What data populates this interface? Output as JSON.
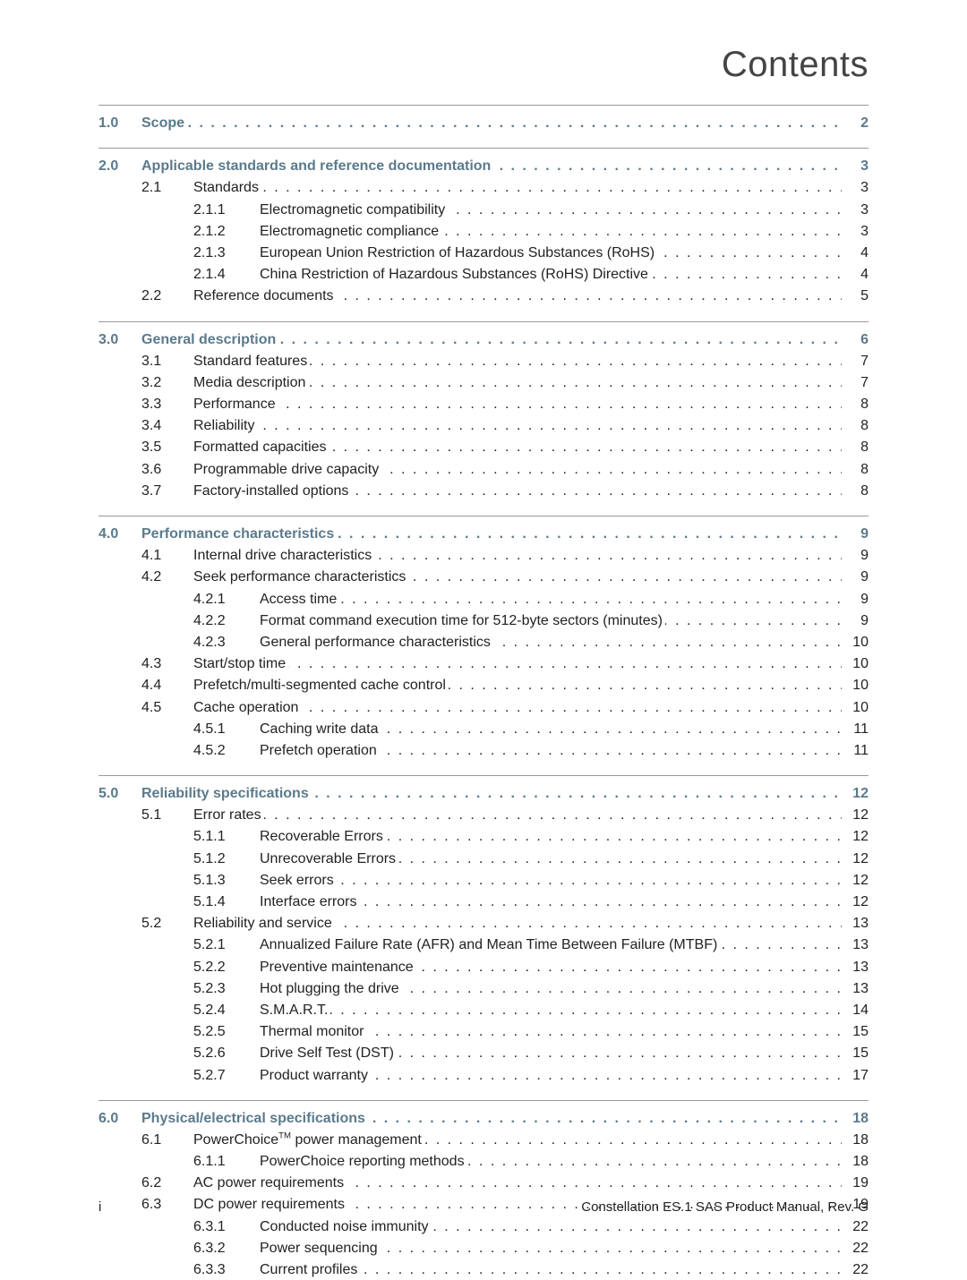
{
  "title": "Contents",
  "footer": {
    "left": "i",
    "right": "Constellation ES.1 SAS Product Manual, Rev. G"
  },
  "sections": [
    {
      "num": "1.0",
      "title": "Scope",
      "page": "2",
      "subs": []
    },
    {
      "num": "2.0",
      "title": "Applicable standards and reference documentation",
      "page": "3",
      "subs": [
        {
          "num": "2.1",
          "title": "Standards",
          "page": "3",
          "subsubs": [
            {
              "num": "2.1.1",
              "title": "Electromagnetic compatibility",
              "page": "3"
            },
            {
              "num": "2.1.2",
              "title": "Electromagnetic compliance",
              "page": "3"
            },
            {
              "num": "2.1.3",
              "title": "European Union Restriction of Hazardous Substances (RoHS)",
              "page": "4"
            },
            {
              "num": "2.1.4",
              "title": "China Restriction of Hazardous Substances (RoHS) Directive",
              "page": "4"
            }
          ]
        },
        {
          "num": "2.2",
          "title": "Reference documents",
          "page": "5",
          "subsubs": []
        }
      ]
    },
    {
      "num": "3.0",
      "title": "General description",
      "page": "6",
      "subs": [
        {
          "num": "3.1",
          "title": "Standard features",
          "page": "7",
          "subsubs": []
        },
        {
          "num": "3.2",
          "title": "Media description",
          "page": "7",
          "subsubs": []
        },
        {
          "num": "3.3",
          "title": "Performance",
          "page": "8",
          "subsubs": []
        },
        {
          "num": "3.4",
          "title": "Reliability",
          "page": "8",
          "subsubs": []
        },
        {
          "num": "3.5",
          "title": "Formatted capacities",
          "page": "8",
          "subsubs": []
        },
        {
          "num": "3.6",
          "title": "Programmable drive capacity",
          "page": "8",
          "subsubs": []
        },
        {
          "num": "3.7",
          "title": "Factory-installed options",
          "page": "8",
          "subsubs": []
        }
      ]
    },
    {
      "num": "4.0",
      "title": "Performance characteristics",
      "page": "9",
      "subs": [
        {
          "num": "4.1",
          "title": "Internal drive characteristics",
          "page": "9",
          "subsubs": []
        },
        {
          "num": "4.2",
          "title": "Seek performance characteristics",
          "page": "9",
          "subsubs": [
            {
              "num": "4.2.1",
              "title": "Access time",
              "page": "9"
            },
            {
              "num": "4.2.2",
              "title": "Format command execution time for 512-byte sectors (minutes)",
              "page": "9"
            },
            {
              "num": "4.2.3",
              "title": "General performance characteristics",
              "page": "10"
            }
          ]
        },
        {
          "num": "4.3",
          "title": "Start/stop time",
          "page": "10",
          "subsubs": []
        },
        {
          "num": "4.4",
          "title": "Prefetch/multi-segmented cache control",
          "page": "10",
          "subsubs": []
        },
        {
          "num": "4.5",
          "title": "Cache operation",
          "page": "10",
          "subsubs": [
            {
              "num": "4.5.1",
              "title": "Caching write data",
              "page": "11"
            },
            {
              "num": "4.5.2",
              "title": "Prefetch operation",
              "page": "11"
            }
          ]
        }
      ]
    },
    {
      "num": "5.0",
      "title": "Reliability specifications",
      "page": "12",
      "subs": [
        {
          "num": "5.1",
          "title": "Error rates",
          "page": "12",
          "subsubs": [
            {
              "num": "5.1.1",
              "title": "Recoverable Errors",
              "page": "12"
            },
            {
              "num": "5.1.2",
              "title": "Unrecoverable Errors",
              "page": "12"
            },
            {
              "num": "5.1.3",
              "title": "Seek errors",
              "page": "12"
            },
            {
              "num": "5.1.4",
              "title": "Interface errors",
              "page": "12"
            }
          ]
        },
        {
          "num": "5.2",
          "title": "Reliability and service",
          "page": "13",
          "subsubs": [
            {
              "num": "5.2.1",
              "title": "Annualized Failure Rate (AFR) and Mean Time Between Failure (MTBF)",
              "page": "13"
            },
            {
              "num": "5.2.2",
              "title": "Preventive maintenance",
              "page": "13"
            },
            {
              "num": "5.2.3",
              "title": "Hot plugging the drive",
              "page": "13"
            },
            {
              "num": "5.2.4",
              "title": "S.M.A.R.T.",
              "page": "14"
            },
            {
              "num": "5.2.5",
              "title": "Thermal monitor",
              "page": "15"
            },
            {
              "num": "5.2.6",
              "title": "Drive Self Test (DST)",
              "page": "15"
            },
            {
              "num": "5.2.7",
              "title": "Product warranty",
              "page": "17"
            }
          ]
        }
      ]
    },
    {
      "num": "6.0",
      "title": "Physical/electrical specifications",
      "page": "18",
      "subs": [
        {
          "num": "6.1",
          "title": "PowerChoice™ power management",
          "page": "18",
          "tm": true,
          "subsubs": [
            {
              "num": "6.1.1",
              "title": "PowerChoice reporting methods",
              "page": "18"
            }
          ]
        },
        {
          "num": "6.2",
          "title": "AC power requirements",
          "page": "19",
          "subsubs": []
        },
        {
          "num": "6.3",
          "title": "DC power requirements",
          "page": "19",
          "subsubs": [
            {
              "num": "6.3.1",
              "title": "Conducted noise immunity",
              "page": "22"
            },
            {
              "num": "6.3.2",
              "title": "Power sequencing",
              "page": "22"
            },
            {
              "num": "6.3.3",
              "title": "Current profiles",
              "page": "22"
            }
          ]
        }
      ]
    }
  ]
}
